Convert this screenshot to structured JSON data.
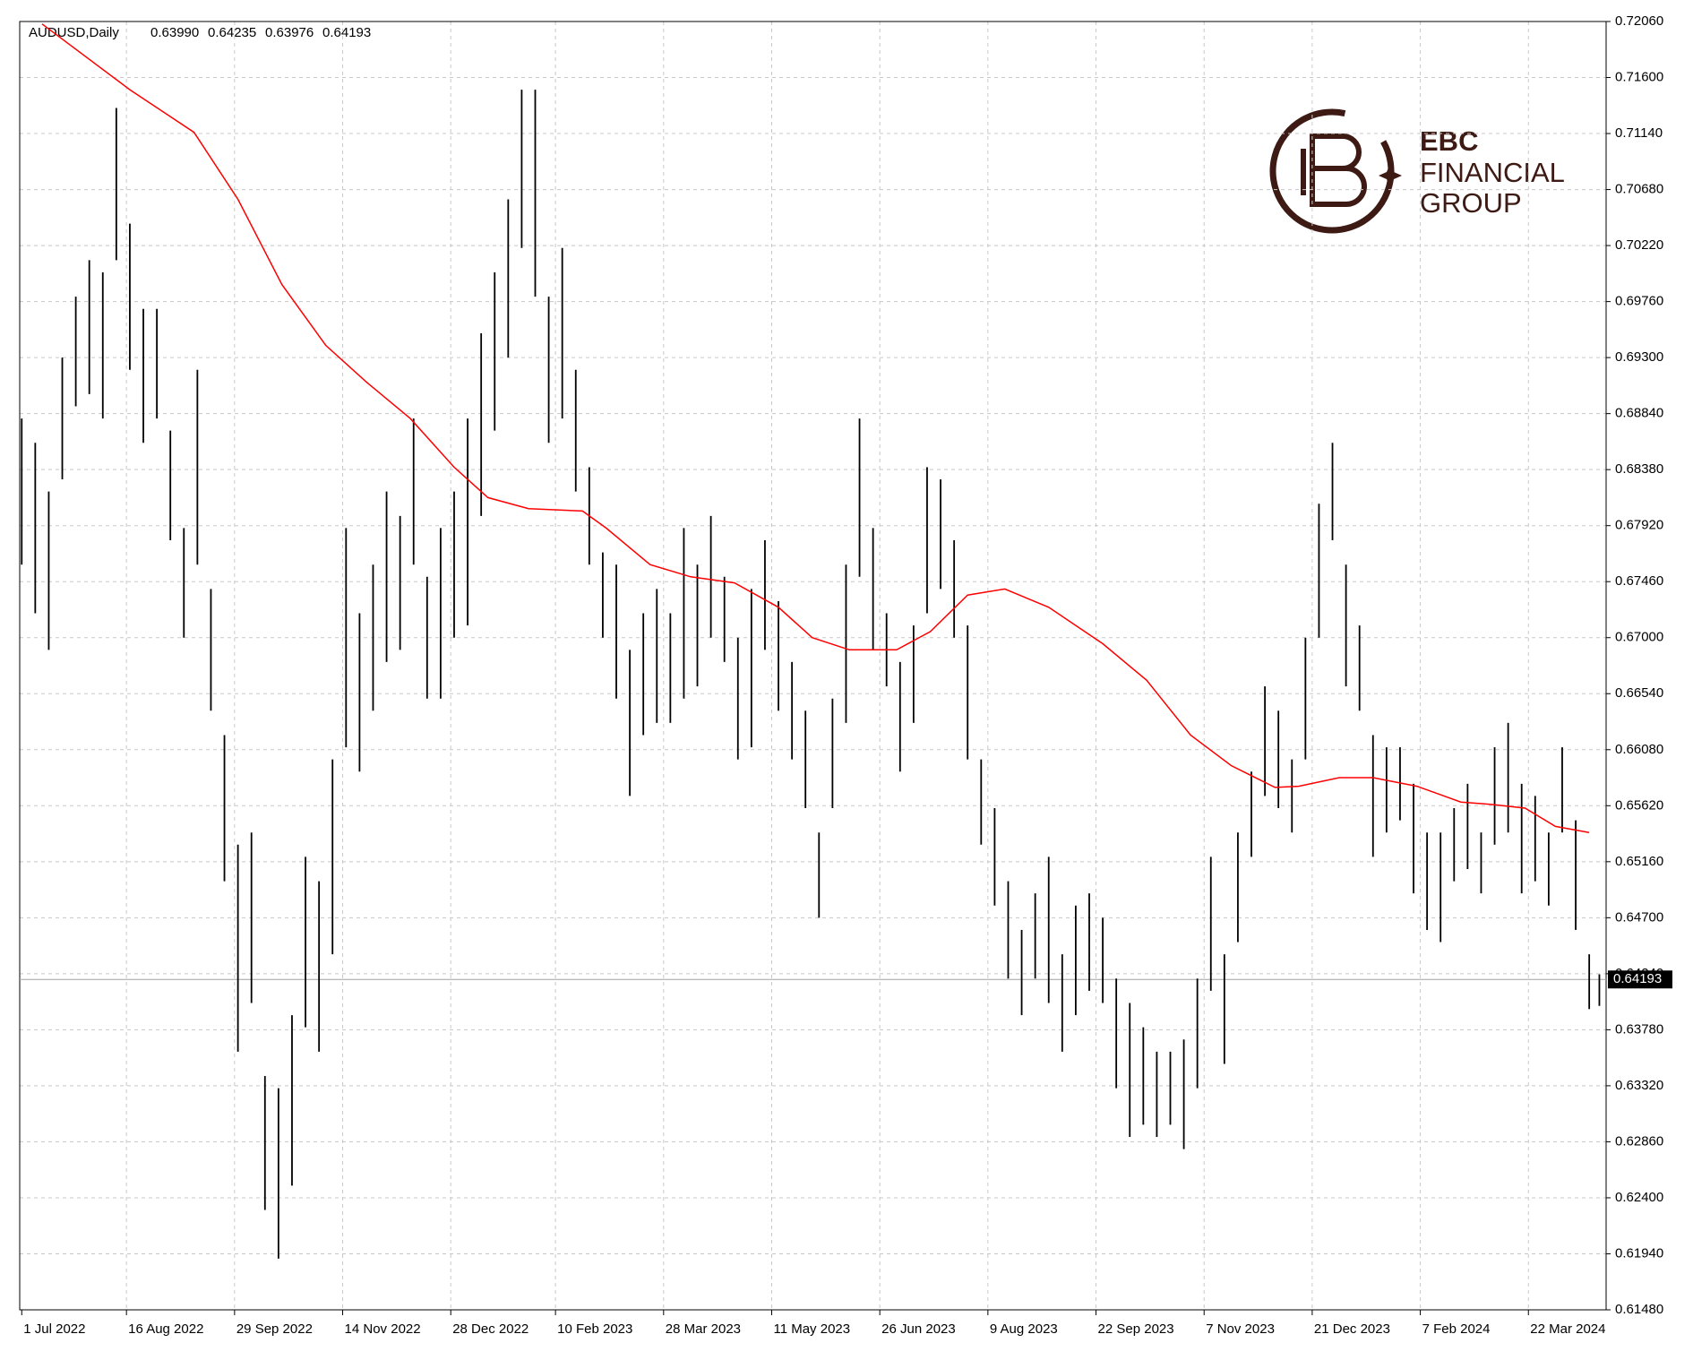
{
  "chart_data": {
    "type": "ohlc",
    "symbol": "AUDUSD,Daily",
    "ohlc_header": [
      {
        "value": 0.6399,
        "label": "0.63990"
      },
      {
        "value": 0.64235,
        "label": "0.64235"
      },
      {
        "value": 0.63976,
        "label": "0.63976"
      },
      {
        "value": 0.64193,
        "label": "0.64193"
      }
    ],
    "xlim": [
      -0.6,
      469
    ],
    "ylim": [
      0.6148,
      0.7206
    ],
    "xticks": [
      {
        "value": 0,
        "label": "1 Jul 2022"
      },
      {
        "value": 31,
        "label": "16 Aug 2022"
      },
      {
        "value": 63,
        "label": "29 Sep 2022"
      },
      {
        "value": 95,
        "label": "14 Nov 2022"
      },
      {
        "value": 127,
        "label": "28 Dec 2022"
      },
      {
        "value": 158,
        "label": "10 Feb 2023"
      },
      {
        "value": 190,
        "label": "28 Mar 2023"
      },
      {
        "value": 222,
        "label": "11 May 2023"
      },
      {
        "value": 254,
        "label": "26 Jun 2023"
      },
      {
        "value": 286,
        "label": "9 Aug 2023"
      },
      {
        "value": 318,
        "label": "22 Sep 2023"
      },
      {
        "value": 350,
        "label": "7 Nov 2023"
      },
      {
        "value": 382,
        "label": "21 Dec 2023"
      },
      {
        "value": 414,
        "label": "7 Feb 2024"
      },
      {
        "value": 446,
        "label": "22 Mar 2024"
      }
    ],
    "yticks": [
      {
        "value": 0.7206,
        "label": "0.72060"
      },
      {
        "value": 0.716,
        "label": "0.71600"
      },
      {
        "value": 0.7114,
        "label": "0.71140"
      },
      {
        "value": 0.7068,
        "label": "0.70680"
      },
      {
        "value": 0.7022,
        "label": "0.70220"
      },
      {
        "value": 0.6976,
        "label": "0.69760"
      },
      {
        "value": 0.693,
        "label": "0.69300"
      },
      {
        "value": 0.6884,
        "label": "0.68840"
      },
      {
        "value": 0.6838,
        "label": "0.68380"
      },
      {
        "value": 0.6792,
        "label": "0.67920"
      },
      {
        "value": 0.6746,
        "label": "0.67460"
      },
      {
        "value": 0.67,
        "label": "0.67000"
      },
      {
        "value": 0.6654,
        "label": "0.66540"
      },
      {
        "value": 0.6608,
        "label": "0.66080"
      },
      {
        "value": 0.6562,
        "label": "0.65620"
      },
      {
        "value": 0.6516,
        "label": "0.65160"
      },
      {
        "value": 0.647,
        "label": "0.64700"
      },
      {
        "value": 0.6424,
        "label": "0.64240"
      },
      {
        "value": 0.6378,
        "label": "0.63780"
      },
      {
        "value": 0.6332,
        "label": "0.63320"
      },
      {
        "value": 0.6286,
        "label": "0.62860"
      },
      {
        "value": 0.624,
        "label": "0.62400"
      },
      {
        "value": 0.6194,
        "label": "0.61940"
      },
      {
        "value": 0.6148,
        "label": "0.61480"
      }
    ],
    "grid": true,
    "current_price": 0.64193,
    "bars": {
      "color": "#000000",
      "x": [
        0,
        4,
        8,
        12,
        16,
        20,
        24,
        28,
        32,
        36,
        40,
        44,
        48,
        52,
        56,
        60,
        64,
        68,
        72,
        76,
        80,
        84,
        88,
        92,
        96,
        100,
        104,
        108,
        112,
        116,
        120,
        124,
        128,
        132,
        136,
        140,
        144,
        148,
        152,
        156,
        160,
        164,
        168,
        172,
        176,
        180,
        184,
        188,
        192,
        196,
        200,
        204,
        208,
        212,
        216,
        220,
        224,
        228,
        232,
        236,
        240,
        244,
        248,
        252,
        256,
        260,
        264,
        268,
        272,
        276,
        280,
        284,
        288,
        292,
        296,
        300,
        304,
        308,
        312,
        316,
        320,
        324,
        328,
        332,
        336,
        340,
        344,
        348,
        352,
        356,
        360,
        364,
        368,
        372,
        376,
        380,
        384,
        388,
        392,
        396,
        400,
        404,
        408,
        412,
        416,
        420,
        424,
        428,
        432,
        436,
        440,
        444,
        448,
        452,
        456,
        460,
        464,
        467
      ],
      "high": [
        0.688,
        0.686,
        0.682,
        0.693,
        0.698,
        0.701,
        0.7,
        0.7135,
        0.704,
        0.697,
        0.697,
        0.687,
        0.679,
        0.692,
        0.674,
        0.662,
        0.653,
        0.654,
        0.634,
        0.633,
        0.639,
        0.652,
        0.65,
        0.66,
        0.679,
        0.672,
        0.676,
        0.682,
        0.68,
        0.688,
        0.675,
        0.679,
        0.682,
        0.688,
        0.695,
        0.7,
        0.706,
        0.715,
        0.715,
        0.698,
        0.702,
        0.692,
        0.684,
        0.677,
        0.676,
        0.669,
        0.672,
        0.674,
        0.672,
        0.679,
        0.676,
        0.68,
        0.675,
        0.67,
        0.674,
        0.678,
        0.673,
        0.668,
        0.664,
        0.654,
        0.665,
        0.676,
        0.688,
        0.679,
        0.672,
        0.668,
        0.671,
        0.684,
        0.683,
        0.678,
        0.671,
        0.66,
        0.656,
        0.65,
        0.646,
        0.649,
        0.652,
        0.644,
        0.648,
        0.649,
        0.647,
        0.642,
        0.64,
        0.638,
        0.636,
        0.636,
        0.637,
        0.642,
        0.652,
        0.644,
        0.654,
        0.659,
        0.666,
        0.664,
        0.66,
        0.67,
        0.681,
        0.686,
        0.676,
        0.671,
        0.662,
        0.661,
        0.661,
        0.658,
        0.654,
        0.654,
        0.656,
        0.658,
        0.654,
        0.661,
        0.663,
        0.658,
        0.657,
        0.654,
        0.661,
        0.655,
        0.644,
        0.64235
      ],
      "low": [
        0.676,
        0.672,
        0.669,
        0.683,
        0.689,
        0.69,
        0.688,
        0.701,
        0.692,
        0.686,
        0.688,
        0.678,
        0.67,
        0.676,
        0.664,
        0.65,
        0.636,
        0.64,
        0.623,
        0.619,
        0.625,
        0.638,
        0.636,
        0.644,
        0.661,
        0.659,
        0.664,
        0.668,
        0.669,
        0.676,
        0.665,
        0.665,
        0.67,
        0.671,
        0.68,
        0.687,
        0.693,
        0.702,
        0.698,
        0.686,
        0.688,
        0.682,
        0.676,
        0.67,
        0.665,
        0.657,
        0.662,
        0.663,
        0.663,
        0.665,
        0.666,
        0.67,
        0.668,
        0.66,
        0.661,
        0.669,
        0.664,
        0.66,
        0.656,
        0.647,
        0.656,
        0.663,
        0.675,
        0.669,
        0.666,
        0.659,
        0.663,
        0.672,
        0.674,
        0.67,
        0.66,
        0.653,
        0.648,
        0.642,
        0.639,
        0.642,
        0.64,
        0.636,
        0.639,
        0.641,
        0.64,
        0.633,
        0.629,
        0.63,
        0.629,
        0.63,
        0.628,
        0.633,
        0.641,
        0.635,
        0.645,
        0.652,
        0.657,
        0.656,
        0.654,
        0.66,
        0.67,
        0.678,
        0.666,
        0.664,
        0.652,
        0.654,
        0.655,
        0.649,
        0.646,
        0.645,
        0.65,
        0.651,
        0.649,
        0.653,
        0.654,
        0.649,
        0.65,
        0.648,
        0.654,
        0.646,
        0.6395,
        0.63976
      ]
    },
    "ma": {
      "color": "#ff0000",
      "x": [
        6,
        32,
        51,
        64,
        77,
        90,
        102,
        115,
        128,
        138,
        150,
        166,
        173,
        186,
        198,
        211,
        224,
        234,
        245,
        259,
        269,
        280,
        291,
        304,
        320,
        333,
        346,
        358,
        371,
        378,
        390,
        400,
        413,
        426,
        435,
        445,
        454,
        464
      ],
      "values": [
        0.7204,
        0.715,
        0.7115,
        0.706,
        0.699,
        0.694,
        0.691,
        0.688,
        0.684,
        0.6815,
        0.6806,
        0.6804,
        0.679,
        0.676,
        0.675,
        0.6745,
        0.6725,
        0.67,
        0.669,
        0.669,
        0.6705,
        0.6735,
        0.674,
        0.6725,
        0.6695,
        0.6665,
        0.662,
        0.6595,
        0.6577,
        0.6578,
        0.6585,
        0.6585,
        0.6578,
        0.6565,
        0.6563,
        0.656,
        0.6545,
        0.654
      ]
    }
  },
  "logo": {
    "line1": "EBC",
    "line2": "FINANCIAL",
    "line3": "GROUP"
  }
}
